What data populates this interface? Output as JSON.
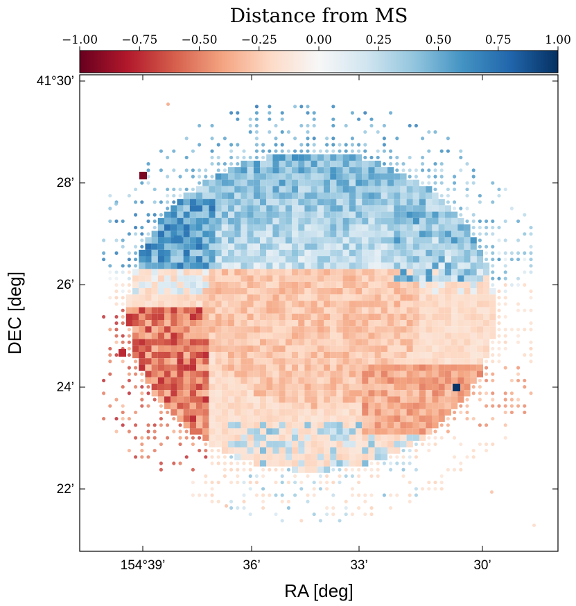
{
  "chart_data": {
    "type": "heatmap",
    "title": "",
    "xlabel": "RA [deg]",
    "ylabel": "DEC [deg]",
    "x_range_arcmin": [
      -2.3,
      3.3
    ],
    "y_range_arcmin": [
      -8.8,
      0.5
    ],
    "x_ticks": [
      {
        "value": 154.65,
        "label": "154°39’"
      },
      {
        "value": 154.6,
        "label": "36’"
      },
      {
        "value": 154.55,
        "label": "33’"
      },
      {
        "value": 154.5,
        "label": "30’"
      }
    ],
    "y_ticks": [
      {
        "value": 41.5,
        "label": "41°30’"
      },
      {
        "value": 41.4667,
        "label": "28’"
      },
      {
        "value": 41.4333,
        "label": "26’"
      },
      {
        "value": 41.4,
        "label": "24’"
      },
      {
        "value": 41.3667,
        "label": "22’"
      }
    ],
    "colorbar": {
      "label": "Distance from MS",
      "range": [
        -1.0,
        1.0
      ],
      "ticks": [
        -1.0,
        -0.75,
        -0.5,
        -0.25,
        0.0,
        0.25,
        0.5,
        0.75,
        1.0
      ],
      "tick_labels": [
        "−1.00",
        "−0.75",
        "−0.50",
        "−0.25",
        "0.00",
        "0.25",
        "0.50",
        "0.75",
        "1.00"
      ],
      "colormap": "RdBu",
      "stops": [
        "#67001f",
        "#b2182b",
        "#d6604d",
        "#f4a582",
        "#fddbc7",
        "#f7f7f7",
        "#d1e5f0",
        "#92c5de",
        "#4393c3",
        "#2166ac",
        "#053061"
      ]
    },
    "highlighted_pixels": [
      {
        "ra_offset_deg": -0.0125,
        "dec_offset_arcmin": -1.9,
        "value": -0.95,
        "note": "isolated dark red square near 154°38.6', 28.1'"
      },
      {
        "ra_offset_deg": 0.0105,
        "dec_offset_arcmin": -6.05,
        "value": 0.98,
        "note": "dark blue square near 30.5', 24.0'"
      },
      {
        "value": -0.75,
        "note": "dark red square at left edge ~24.6'"
      },
      {
        "value": 0.7,
        "note": "blue cluster upper-left ~26.8'-27.5'"
      }
    ],
    "description_of_field": "Roughly circular field of binned pixels; interior mostly slightly negative (light red/orange, -0.1 to -0.4); top and upper-left rim positive (blue, 0.2 to 0.7); lower-left rim strongly negative (red, -0.5 to -0.8); sparse outer points rendered as small dots."
  }
}
